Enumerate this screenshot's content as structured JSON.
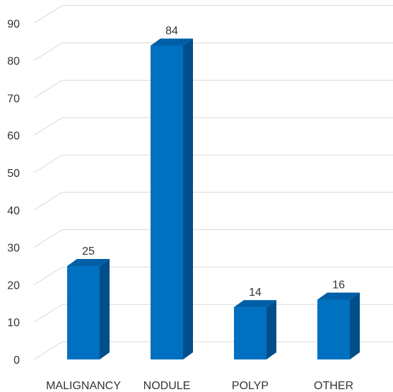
{
  "chart_data": {
    "type": "bar",
    "style": "3d-column",
    "categories": [
      "MALIGNANCY",
      "NODULE",
      "POLYP",
      "OTHER"
    ],
    "values": [
      25,
      84,
      14,
      16
    ],
    "data_labels": [
      "25",
      "84",
      "14",
      "16"
    ],
    "ylim": [
      0,
      90
    ],
    "yticks": [
      0,
      10,
      20,
      30,
      40,
      50,
      60,
      70,
      80,
      90
    ],
    "ytick_labels": [
      "0",
      "10",
      "20",
      "30",
      "40",
      "50",
      "60",
      "70",
      "80",
      "90"
    ],
    "grid": true,
    "legend": "none",
    "title": "",
    "xlabel": "",
    "ylabel": "",
    "colors": {
      "bar_front": "#0070c0",
      "bar_side": "#004f8a",
      "bar_top": "#005fa6",
      "grid": "#d9d9d9",
      "text": "#333333"
    }
  }
}
